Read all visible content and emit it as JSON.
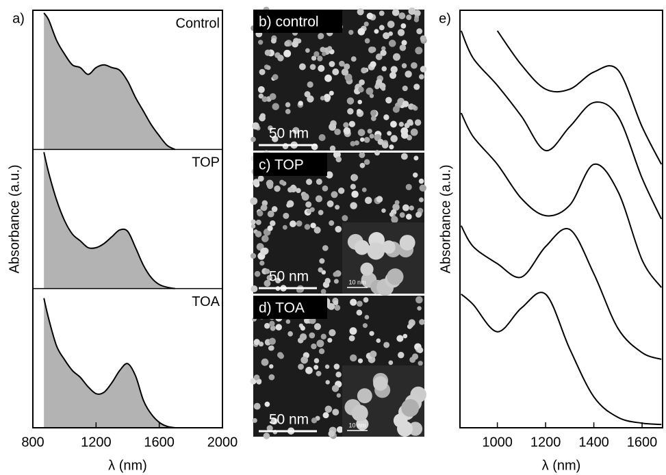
{
  "chart_data": [
    {
      "type": "area",
      "panel_label": "a)",
      "x_label": "λ (nm)",
      "y_label": "Absorbance (a.u.)",
      "xlim": [
        800,
        2000
      ],
      "xticks": [
        800,
        1200,
        1600,
        2000
      ],
      "ylim": [
        0,
        1
      ],
      "x": [
        870,
        900,
        950,
        1000,
        1050,
        1100,
        1150,
        1200,
        1250,
        1300,
        1350,
        1400,
        1450,
        1500,
        1550,
        1600,
        1650,
        1700
      ],
      "series": [
        {
          "name": "Control",
          "color": "#b3b3b3",
          "values": [
            1.0,
            0.95,
            0.8,
            0.7,
            0.62,
            0.6,
            0.55,
            0.6,
            0.62,
            0.6,
            0.58,
            0.5,
            0.38,
            0.28,
            0.18,
            0.1,
            0.03,
            0
          ]
        },
        {
          "name": "TOP",
          "color": "#b3b3b3",
          "values": [
            1.0,
            0.85,
            0.65,
            0.5,
            0.4,
            0.35,
            0.3,
            0.3,
            0.33,
            0.38,
            0.43,
            0.42,
            0.3,
            0.17,
            0.08,
            0.03,
            0.01,
            0
          ]
        },
        {
          "name": "TOA",
          "color": "#b3b3b3",
          "values": [
            0.95,
            0.8,
            0.6,
            0.5,
            0.42,
            0.37,
            0.3,
            0.25,
            0.26,
            0.33,
            0.42,
            0.47,
            0.38,
            0.2,
            0.1,
            0.04,
            0.01,
            0
          ]
        }
      ]
    },
    {
      "type": "line",
      "panel_label": "e)",
      "x_label": "λ (nm)",
      "y_label": "Absorbance (a.u.)",
      "xlim": [
        845,
        1685
      ],
      "xticks": [
        1000,
        1200,
        1400,
        1600
      ],
      "ylim": [
        0,
        10
      ],
      "x": [
        850,
        900,
        1000,
        1100,
        1200,
        1300,
        1400,
        1500,
        1600,
        1680
      ],
      "series": [
        {
          "color": "#000000",
          "values": [
            null,
            null,
            9.51,
            8.69,
            8.11,
            8.11,
            8.52,
            8.57,
            7.21,
            6.31
          ]
        },
        {
          "color": "#000000",
          "values": [
            9.51,
            8.85,
            8.2,
            7.46,
            6.64,
            7.21,
            7.79,
            7.46,
            5.98,
            5.0
          ]
        },
        {
          "color": "#000000",
          "values": [
            7.54,
            6.97,
            6.31,
            5.49,
            5.08,
            5.33,
            6.31,
            5.66,
            4.02,
            3.36
          ]
        },
        {
          "color": "#000000",
          "values": [
            4.84,
            4.34,
            3.93,
            3.61,
            4.34,
            4.75,
            3.69,
            2.38,
            1.8,
            1.64
          ]
        },
        {
          "color": "#000000",
          "values": [
            3.2,
            2.95,
            2.3,
            2.87,
            3.2,
            1.89,
            0.74,
            0.25,
            0.11,
            0.08
          ]
        }
      ]
    }
  ],
  "images": [
    {
      "label": "b) control",
      "scale_bar": "50 nm"
    },
    {
      "label": "c) TOP",
      "scale_bar": "50 nm",
      "inset_scale_bar": "10 nm"
    },
    {
      "label": "d) TOA",
      "scale_bar": "50 nm",
      "inset_scale_bar": "10 nm"
    }
  ]
}
